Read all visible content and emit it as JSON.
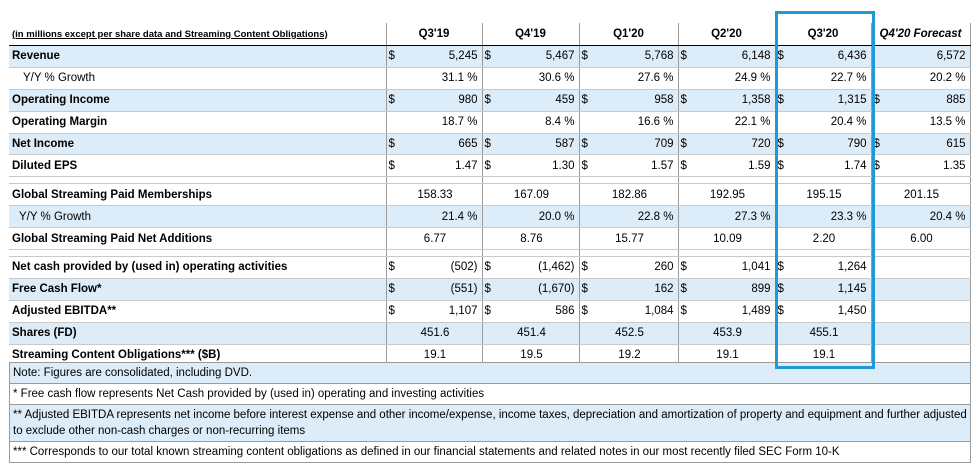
{
  "header": {
    "label": "(in millions except per share data and Streaming Content Obligations)",
    "columns": [
      "Q3'19",
      "Q4'19",
      "Q1'20",
      "Q2'20",
      "Q3'20",
      "Q4'20 Forecast"
    ]
  },
  "rows": [
    {
      "label": "Revenue",
      "cells": [
        "$",
        "5,245",
        "$",
        "5,467",
        "$",
        "5,768",
        "$",
        "6,148",
        "$",
        "6,436",
        "",
        "6,572"
      ]
    },
    {
      "label": "Y/Y % Growth",
      "cells": [
        "",
        "31.1 %",
        "",
        "30.6 %",
        "",
        "27.6 %",
        "",
        "24.9 %",
        "",
        "22.7 %",
        "",
        "20.2 %"
      ]
    },
    {
      "label": "Operating Income",
      "cells": [
        "$",
        "980",
        "$",
        "459",
        "$",
        "958",
        "$",
        "1,358",
        "$",
        "1,315",
        "$",
        "885"
      ]
    },
    {
      "label": "Operating Margin",
      "cells": [
        "",
        "18.7 %",
        "",
        "8.4 %",
        "",
        "16.6 %",
        "",
        "22.1 %",
        "",
        "20.4 %",
        "",
        "13.5 %"
      ]
    },
    {
      "label": "Net Income",
      "cells": [
        "$",
        "665",
        "$",
        "587",
        "$",
        "709",
        "$",
        "720",
        "$",
        "790",
        "$",
        "615"
      ]
    },
    {
      "label": "Diluted EPS",
      "cells": [
        "$",
        "1.47",
        "$",
        "1.30",
        "$",
        "1.57",
        "$",
        "1.59",
        "$",
        "1.74",
        "$",
        "1.35"
      ]
    },
    {
      "label": "Global Streaming Paid Memberships",
      "values": [
        "158.33",
        "167.09",
        "182.86",
        "192.95",
        "195.15",
        "201.15"
      ]
    },
    {
      "label": "Y/Y % Growth",
      "cells": [
        "",
        "21.4 %",
        "",
        "20.0 %",
        "",
        "22.8 %",
        "",
        "27.3 %",
        "",
        "23.3 %",
        "",
        "20.4 %"
      ]
    },
    {
      "label": "Global Streaming Paid Net Additions",
      "values": [
        "6.77",
        "8.76",
        "15.77",
        "10.09",
        "2.20",
        "6.00"
      ]
    },
    {
      "label": "Net cash provided by (used in) operating activities",
      "cells": [
        "$",
        "(502)",
        "$",
        "(1,462)",
        "$",
        "260",
        "$",
        "1,041",
        "$",
        "1,264"
      ]
    },
    {
      "label": "Free Cash Flow*",
      "cells": [
        "$",
        "(551)",
        "$",
        "(1,670)",
        "$",
        "162",
        "$",
        "899",
        "$",
        "1,145"
      ]
    },
    {
      "label": "Adjusted EBITDA**",
      "cells": [
        "$",
        "1,107",
        "$",
        "586",
        "$",
        "1,084",
        "$",
        "1,489",
        "$",
        "1,450"
      ]
    },
    {
      "label": "Shares (FD)",
      "values": [
        "451.6",
        "451.4",
        "452.5",
        "453.9",
        "455.1"
      ]
    },
    {
      "label": "Streaming Content Obligations*** ($B)",
      "values": [
        "19.1",
        "19.5",
        "19.2",
        "19.1",
        "19.1"
      ]
    }
  ],
  "notes": [
    "Note: Figures are consolidated, including DVD.",
    "* Free cash flow represents Net Cash provided by (used in) operating and investing activities",
    "** Adjusted EBITDA represents net income before interest expense and other income/expense, income taxes, depreciation and amortization of property and equipment and further adjusted to exclude other non-cash charges or non-recurring items",
    "*** Corresponds to our total known streaming content obligations as defined in our financial statements and related notes in our most recently filed SEC Form 10-K"
  ],
  "colors": {
    "row_highlight": "#dcecf8",
    "q3_highlight_border": "#1f9ad6"
  }
}
